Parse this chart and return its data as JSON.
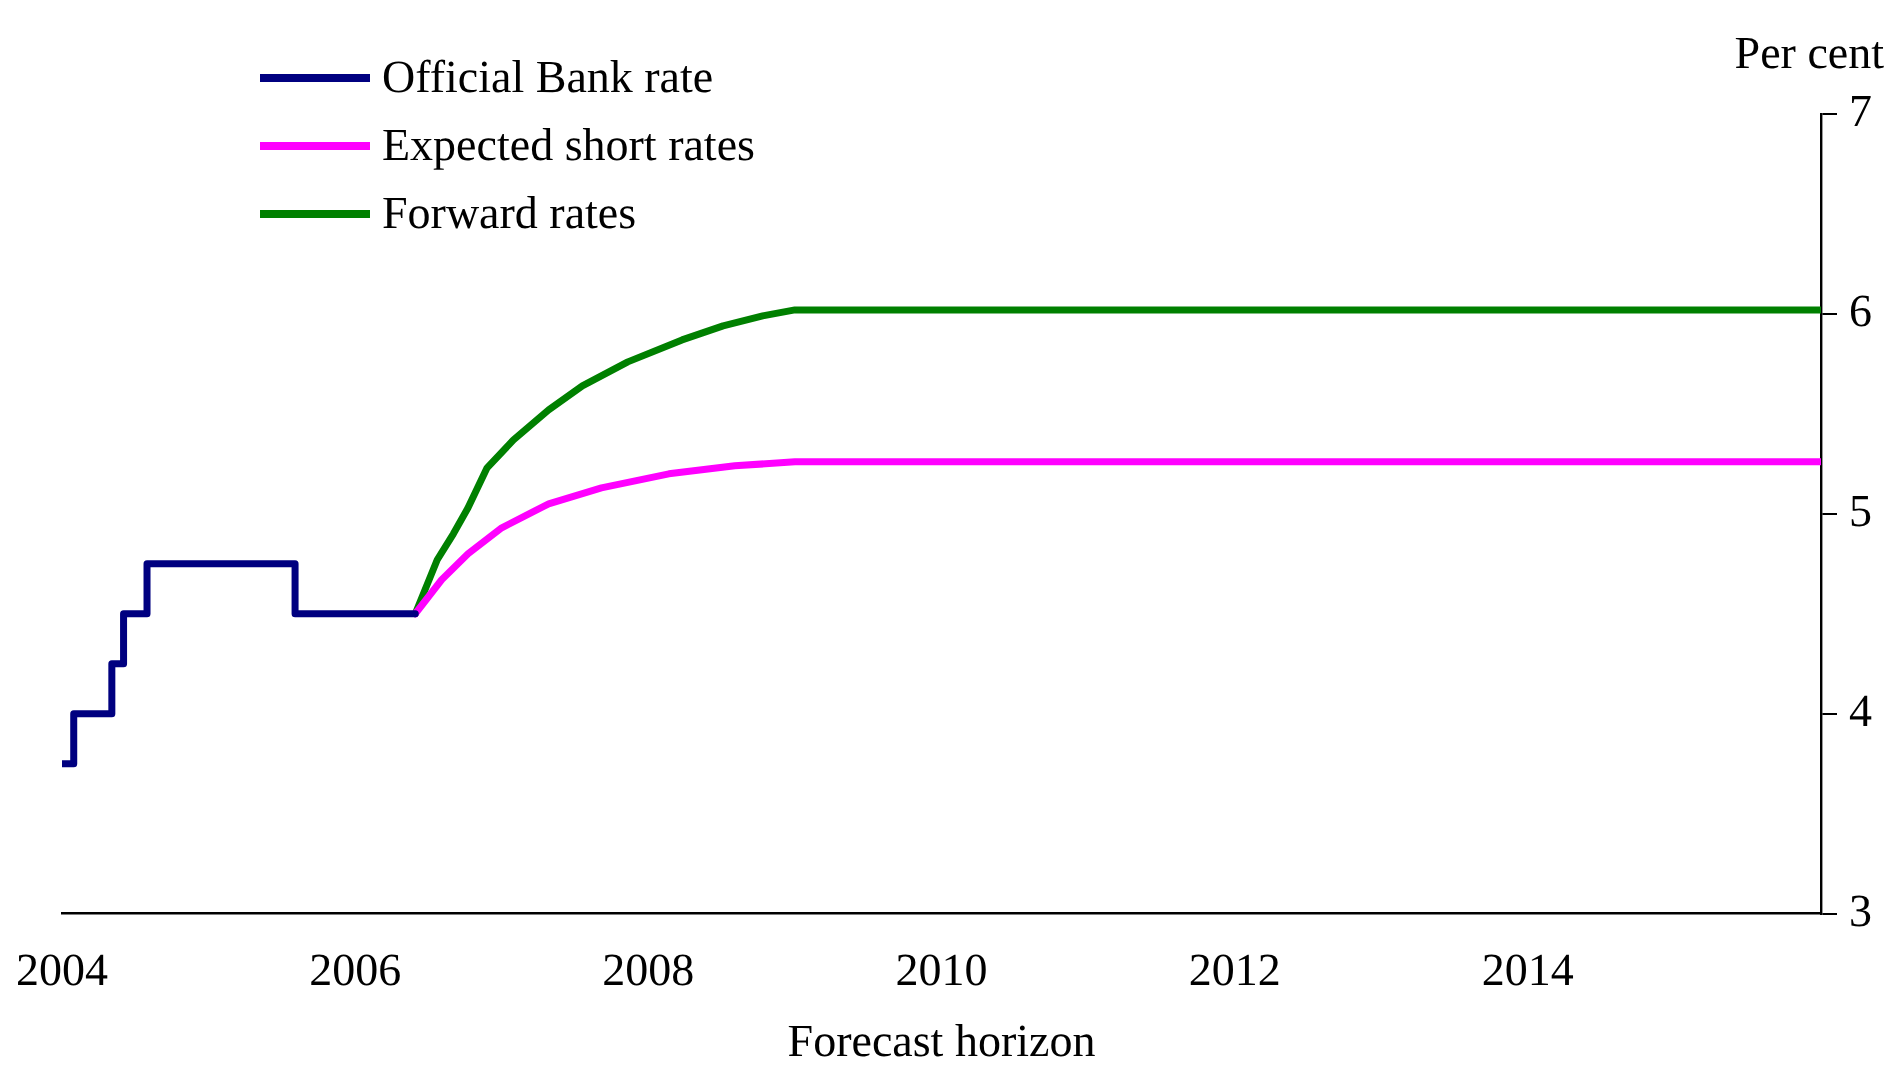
{
  "chart_data": {
    "type": "line",
    "xlabel": "Forecast horizon",
    "ylabel": "Per cent",
    "xlim": [
      2004,
      2016
    ],
    "xticks": [
      2004,
      2006,
      2008,
      2010,
      2012,
      2014
    ],
    "ylim": [
      3,
      7
    ],
    "yticks": [
      3,
      4,
      5,
      6,
      7
    ],
    "grid": false,
    "legend": "top left",
    "series": [
      {
        "name": "Official Bank rate",
        "type": "step",
        "color": "#000080",
        "x": [
          2004,
          2004.08,
          2004.34,
          2004.42,
          2004.58,
          2005.59,
          2006.41
        ],
        "values": [
          3.75,
          4,
          4.25,
          4.5,
          4.75,
          4.5,
          4.5
        ]
      },
      {
        "name": "Expected short rates",
        "type": "line",
        "color": "#ff00ff",
        "x": [
          2006.41,
          2006.59,
          2006.77,
          2007.0,
          2007.32,
          2007.68,
          2008.14,
          2008.59,
          2009.0,
          2016
        ],
        "values": [
          4.5,
          4.67,
          4.8,
          4.93,
          5.05,
          5.13,
          5.2,
          5.24,
          5.26,
          5.26
        ]
      },
      {
        "name": "Forward rates",
        "type": "line",
        "color": "#008000",
        "x": [
          2006.41,
          2006.56,
          2006.67,
          2006.77,
          2006.9,
          2007.08,
          2007.32,
          2007.55,
          2007.86,
          2008.23,
          2008.51,
          2008.78,
          2009.0,
          2016
        ],
        "values": [
          4.5,
          4.77,
          4.9,
          5.03,
          5.23,
          5.37,
          5.52,
          5.64,
          5.76,
          5.87,
          5.94,
          5.99,
          6.02,
          6.02
        ]
      }
    ]
  }
}
